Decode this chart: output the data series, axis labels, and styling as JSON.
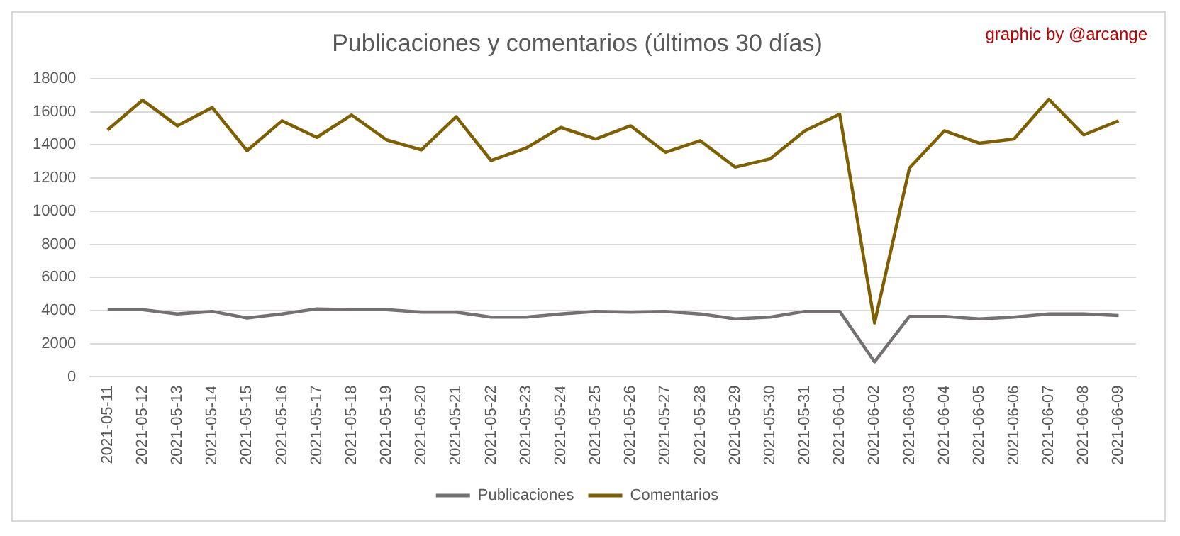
{
  "chart_data": {
    "type": "line",
    "title": "Publicaciones y comentarios (últimos 30 días)",
    "annotations": [
      "graphic by @arcange"
    ],
    "categories": [
      "2021-05-11",
      "2021-05-12",
      "2021-05-13",
      "2021-05-14",
      "2021-05-15",
      "2021-05-16",
      "2021-05-17",
      "2021-05-18",
      "2021-05-19",
      "2021-05-20",
      "2021-05-21",
      "2021-05-22",
      "2021-05-23",
      "2021-05-24",
      "2021-05-25",
      "2021-05-26",
      "2021-05-27",
      "2021-05-28",
      "2021-05-29",
      "2021-05-30",
      "2021-05-31",
      "2021-06-01",
      "2021-06-02",
      "2021-06-03",
      "2021-06-04",
      "2021-06-05",
      "2021-06-06",
      "2021-06-07",
      "2021-06-08",
      "2021-06-09"
    ],
    "series": [
      {
        "name": "Publicaciones",
        "color": "#767171",
        "values": [
          4050,
          4050,
          3800,
          3950,
          3550,
          3800,
          4100,
          4050,
          4050,
          3900,
          3900,
          3600,
          3600,
          3800,
          3950,
          3900,
          3950,
          3800,
          3500,
          3600,
          3950,
          3950,
          900,
          3650,
          3650,
          3500,
          3600,
          3800,
          3800,
          3700
        ]
      },
      {
        "name": "Comentarios",
        "color": "#7f6000",
        "values": [
          14900,
          16700,
          15150,
          16250,
          13650,
          15450,
          14450,
          15800,
          14300,
          13700,
          15700,
          13050,
          13800,
          15050,
          14350,
          15150,
          13550,
          14250,
          12650,
          13150,
          14850,
          15850,
          3250,
          12600,
          14850,
          14100,
          14350,
          16750,
          14600,
          15450
        ]
      }
    ],
    "ylim": [
      0,
      18000
    ],
    "yticks": [
      0,
      2000,
      4000,
      6000,
      8000,
      10000,
      12000,
      14000,
      16000,
      18000
    ],
    "grid": "y",
    "legend": "bottom",
    "marker": "none",
    "line_style": "solid"
  }
}
